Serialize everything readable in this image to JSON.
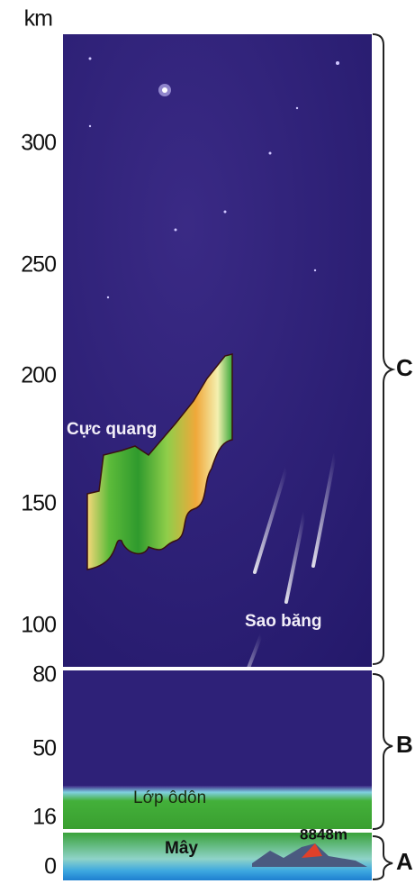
{
  "axis": {
    "unit": "km",
    "ticks": [
      300,
      250,
      200,
      150,
      100,
      80,
      50,
      16,
      0
    ]
  },
  "layers": [
    {
      "label": "C"
    },
    {
      "label": "B"
    },
    {
      "label": "A"
    }
  ],
  "annotations": {
    "aurora": "Cực quang",
    "meteor": "Sao băng",
    "ozone": "Lớp ôdôn",
    "clouds": "Mây",
    "everest": "8848m"
  }
}
